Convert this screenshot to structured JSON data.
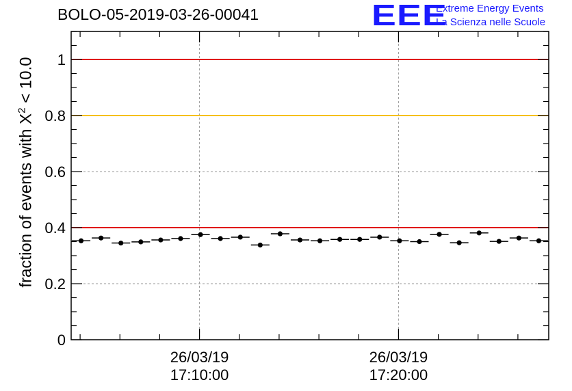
{
  "header": {
    "title": "BOLO-05-2019-03-26-00041"
  },
  "logo": {
    "mark": "EEE",
    "line1": "Extreme Energy Events",
    "line2": "La Scienza nelle Scuole"
  },
  "chart_data": {
    "type": "scatter",
    "title": "BOLO-05-2019-03-26-00041",
    "xlabel": "",
    "ylabel": {
      "prefix": "fraction of events with ",
      "chi": "X",
      "sup": "2",
      "suffix": " < 10.0"
    },
    "ylim": [
      0,
      1.1
    ],
    "xlim": [
      "2019-03-26 17:03:33",
      "2019-03-26 17:27:33"
    ],
    "grid": true,
    "yticks": [
      "0",
      "0.2",
      "0.4",
      "0.6",
      "0.8",
      "1"
    ],
    "xticks": [
      {
        "date": "26/03/19",
        "time": "17:10:00"
      },
      {
        "date": "26/03/19",
        "time": "17:20:00"
      }
    ],
    "reference_lines": [
      {
        "y": 1.0,
        "color": "#e00000"
      },
      {
        "y": 0.8,
        "color": "#f5c000"
      },
      {
        "y": 0.4,
        "color": "#e00000"
      }
    ],
    "series": [
      {
        "bin_width_seconds": 60,
        "x": [
          "17:04:03",
          "17:05:03",
          "17:06:03",
          "17:07:03",
          "17:08:03",
          "17:09:03",
          "17:10:03",
          "17:11:03",
          "17:12:03",
          "17:13:03",
          "17:14:03",
          "17:15:03",
          "17:16:03",
          "17:17:03",
          "17:18:03",
          "17:19:03",
          "17:20:03",
          "17:21:03",
          "17:22:03",
          "17:23:03",
          "17:24:03",
          "17:25:03",
          "17:26:03",
          "17:27:03"
        ],
        "values": [
          0.353,
          0.363,
          0.345,
          0.349,
          0.356,
          0.361,
          0.375,
          0.361,
          0.366,
          0.338,
          0.378,
          0.356,
          0.353,
          0.358,
          0.358,
          0.366,
          0.353,
          0.35,
          0.376,
          0.346,
          0.381,
          0.351,
          0.363,
          0.353
        ]
      }
    ]
  }
}
